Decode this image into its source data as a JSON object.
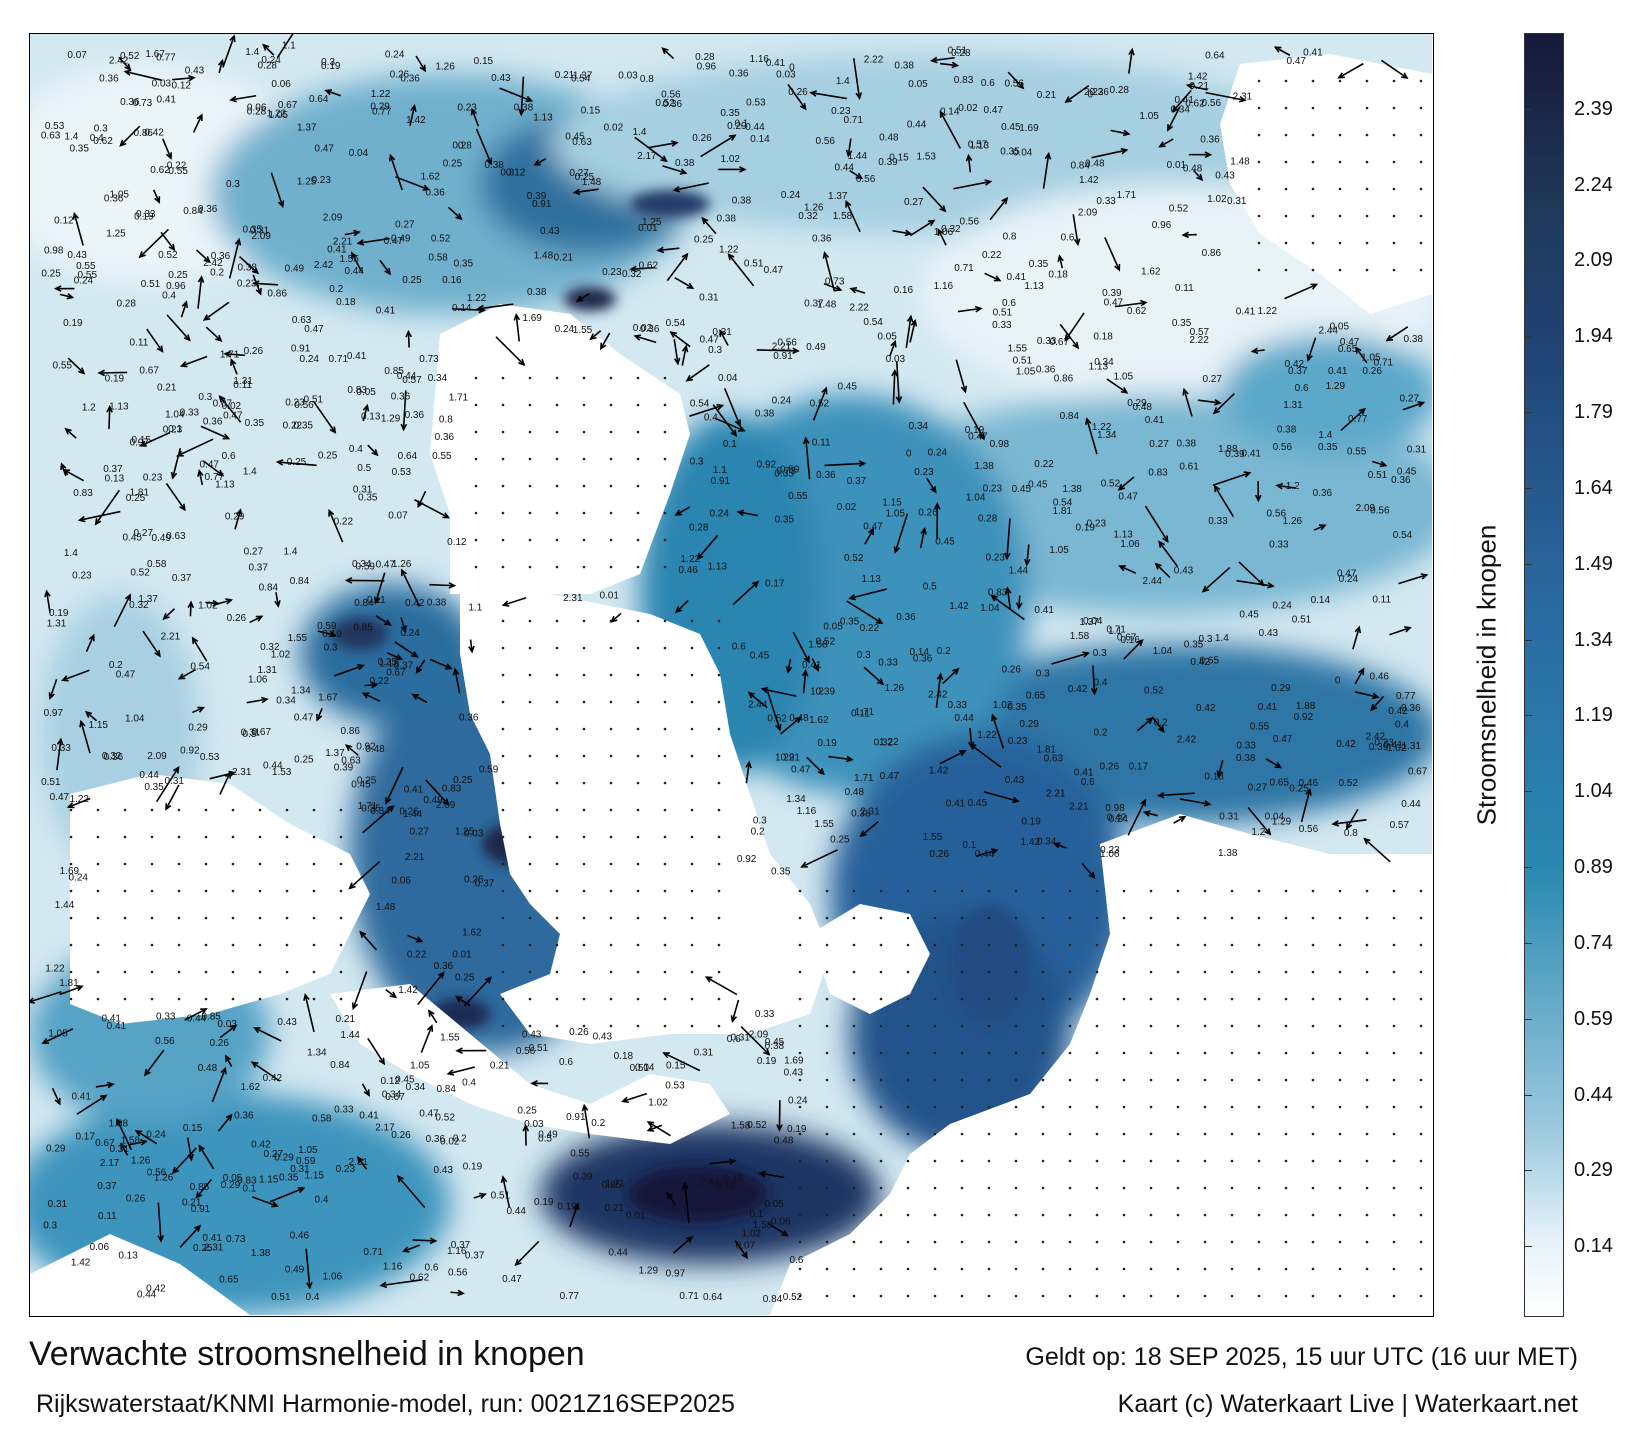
{
  "map": {
    "title": "Verwachte stroomsnelheid in knopen",
    "valid_time": "Geldt op: 18 SEP 2025, 15 uur UTC (16 uur MET)",
    "source": "Rijkswaterstaat/KNMI Harmonie-model, run: 0021Z16SEP2025",
    "credit": "Kaart (c) Waterkaart Live | Waterkaart.net",
    "colorbar_label": "Stroomsnelheid in knopen",
    "colorbar_ticks": [
      "2.39",
      "2.24",
      "2.09",
      "1.94",
      "1.79",
      "1.64",
      "1.49",
      "1.34",
      "1.19",
      "1.04",
      "0.89",
      "0.74",
      "0.59",
      "0.44",
      "0.29",
      "0.14"
    ],
    "colorbar_max": 2.54,
    "colors": {
      "land": "#ffffff",
      "low": "#e6f2f8",
      "mid": "#2a88b0",
      "high": "#1f3f6e",
      "max": "#17183a"
    },
    "value_labels": [
      "0.71",
      "0.62",
      "0.25",
      "0.27",
      "0.24",
      "0.23",
      "0.19",
      "0.29",
      "0.33",
      "0.27",
      "0.45",
      "0.35",
      "0.19",
      "0.52",
      "0.42",
      "0.37",
      "0.36",
      "0.36",
      "0.54",
      "0.47",
      "0.61",
      "0.63",
      "0.73",
      "0.84",
      "1.25",
      "1.4",
      "1.05",
      "1.37",
      "1.33",
      "1.2",
      "0.53",
      "0.48",
      "0.38",
      "0.43",
      "0.32",
      "0.28",
      "0.3",
      "0.24",
      "0.2",
      "0.22",
      "0.21",
      "0.25",
      "0.26",
      "0.31",
      "0.43",
      "0.48",
      "0.49",
      "0.5",
      "0.51",
      "0.55",
      "0.56",
      "0.59",
      "0.63",
      "0.65",
      "0.45",
      "0.44",
      "0.38",
      "0.41",
      "0.35",
      "0.36",
      "0.37",
      "0.34",
      "0.33",
      "0.47",
      "0.54",
      "0.52",
      "0.21",
      "0.26",
      "0.31",
      "0.3",
      "0.29",
      "0.35",
      "0.39",
      "0.4",
      "0.41",
      "0.47",
      "0.83",
      "0.85",
      "0.97",
      "1.05",
      "1.04",
      "1.06",
      "1.16",
      "0.89",
      "0.91",
      "0.8",
      "0.77",
      "0.96",
      "1.15",
      "1.1",
      "1.29",
      "1.31",
      "1.42",
      "1.44",
      "1.62",
      "1.71",
      "1.58",
      "1.53",
      "1.26",
      "0.92",
      "0.98",
      "1.02",
      "1.22",
      "1.38",
      "1.55",
      "1.67",
      "1.81",
      "1.88",
      "2.09",
      "2.17",
      "2.22",
      "2.31",
      "2.42",
      "2.44",
      "2.21",
      "1.69",
      "1.48",
      "1.34",
      "1.13",
      "0.86",
      "0.67",
      "0.64",
      "0.6",
      "0.58",
      "0.57",
      "0.56",
      "0.55",
      "0.51",
      "0.49",
      "0.47",
      "0.46",
      "0.44",
      "0.43",
      "0.42",
      "0.41",
      "0.4",
      "0.39",
      "0.38",
      "0.36",
      "0.34",
      "0.33",
      "0.32",
      "0.31",
      "0.28",
      "0.27",
      "0.26",
      "0.23",
      "0.22",
      "0.2",
      "0.19",
      "0.18",
      "0.17",
      "0.16",
      "0.15",
      "0.14",
      "0.13",
      "0.12",
      "0.11",
      "0.1",
      "0.09",
      "0.08",
      "0.07",
      "0.06",
      "0.05",
      "0.04",
      "0.03",
      "0.02",
      "0.01",
      "0"
    ]
  }
}
